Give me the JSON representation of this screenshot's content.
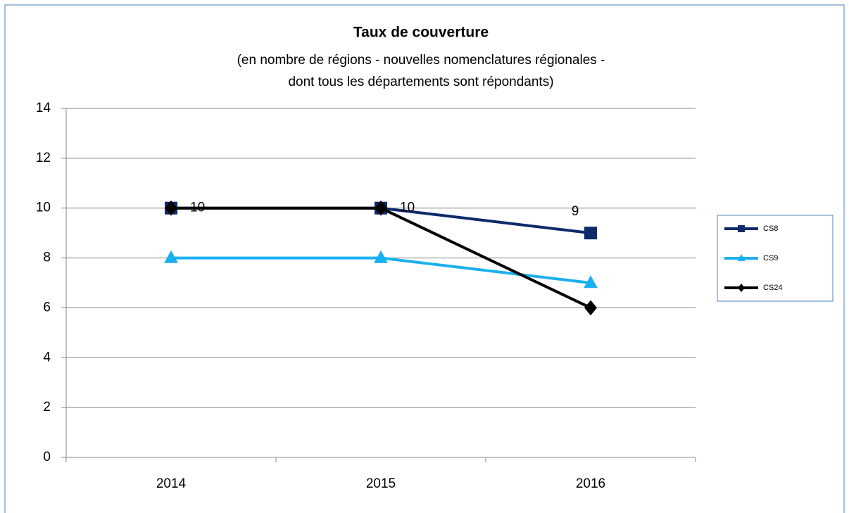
{
  "chart_data": {
    "type": "line",
    "title": "Taux de couverture",
    "subtitle": [
      "(en nombre de régions - nouvelles nomenclatures régionales -",
      "dont tous les départements sont répondants)"
    ],
    "categories": [
      "2014",
      "2015",
      "2016"
    ],
    "series": [
      {
        "name": "CS8",
        "color": "#0d2a6b",
        "marker": "square",
        "show_labels": true,
        "values": [
          10,
          10,
          9
        ]
      },
      {
        "name": "CS9",
        "color": "#1ab0f0",
        "marker": "triangle",
        "show_labels": false,
        "values": [
          8,
          8,
          7
        ]
      },
      {
        "name": "CS24",
        "color": "#000000",
        "marker": "diamond",
        "show_labels": false,
        "values": [
          10,
          10,
          6
        ]
      }
    ],
    "ylim": [
      0,
      14
    ],
    "yticks": [
      0,
      2,
      4,
      6,
      8,
      10,
      12,
      14
    ],
    "grid": true,
    "legend": "right"
  }
}
